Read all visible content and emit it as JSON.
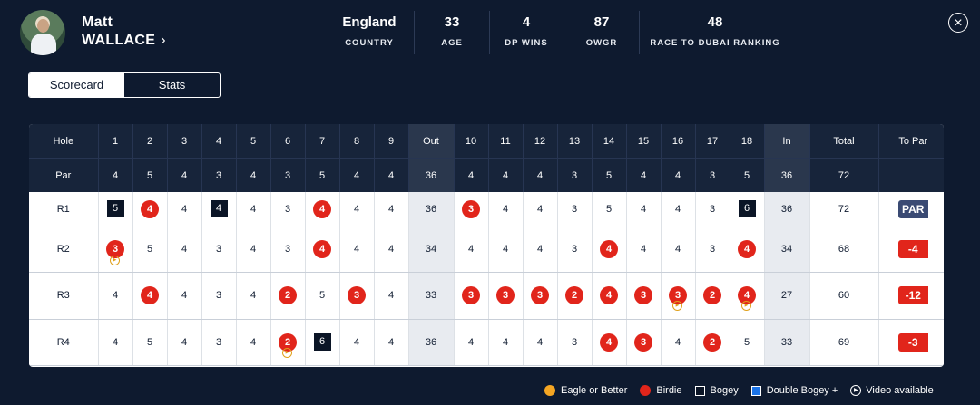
{
  "player": {
    "first_name": "Matt",
    "last_name": "WALLACE",
    "chevron": "›"
  },
  "stats": [
    {
      "value": "England",
      "label": "COUNTRY"
    },
    {
      "value": "33",
      "label": "AGE"
    },
    {
      "value": "4",
      "label": "DP WINS"
    },
    {
      "value": "87",
      "label": "OWGR"
    },
    {
      "value": "48",
      "label": "RACE TO DUBAI RANKING"
    }
  ],
  "close_icon": "×",
  "tabs": [
    {
      "label": "Scorecard",
      "active": true
    },
    {
      "label": "Stats",
      "active": false
    }
  ],
  "table": {
    "hole_label": "Hole",
    "par_label": "Par",
    "holes": [
      "1",
      "2",
      "3",
      "4",
      "5",
      "6",
      "7",
      "8",
      "9",
      "Out",
      "10",
      "11",
      "12",
      "13",
      "14",
      "15",
      "16",
      "17",
      "18",
      "In",
      "Total",
      "To Par"
    ],
    "par": [
      "4",
      "5",
      "4",
      "3",
      "4",
      "3",
      "5",
      "4",
      "4",
      "36",
      "4",
      "4",
      "4",
      "3",
      "5",
      "4",
      "4",
      "3",
      "5",
      "36",
      "72",
      ""
    ]
  },
  "rounds": [
    {
      "label": "R1",
      "scores": [
        "5",
        "4",
        "4",
        "4",
        "4",
        "3",
        "4",
        "4",
        "4",
        "36",
        "3",
        "4",
        "4",
        "3",
        "5",
        "4",
        "4",
        "3",
        "6",
        "36",
        "72"
      ],
      "types": [
        "bogey",
        "birdie",
        "",
        "bogey",
        "",
        "",
        "birdie",
        "",
        "",
        "",
        "birdie",
        "",
        "",
        "",
        "",
        "",
        "",
        "",
        "bogey",
        "",
        ""
      ],
      "videos": [],
      "to_par": "PAR",
      "to_par_type": "par"
    },
    {
      "label": "R2",
      "scores": [
        "3",
        "5",
        "4",
        "3",
        "4",
        "3",
        "4",
        "4",
        "4",
        "34",
        "4",
        "4",
        "4",
        "3",
        "4",
        "4",
        "4",
        "3",
        "4",
        "34",
        "68"
      ],
      "types": [
        "birdie",
        "",
        "",
        "",
        "",
        "",
        "birdie",
        "",
        "",
        "",
        "",
        "",
        "",
        "",
        "birdie",
        "",
        "",
        "",
        "birdie",
        "",
        ""
      ],
      "videos": [
        0
      ],
      "to_par": "-4",
      "to_par_type": "under"
    },
    {
      "label": "R3",
      "scores": [
        "4",
        "4",
        "4",
        "3",
        "4",
        "2",
        "5",
        "3",
        "4",
        "33",
        "3",
        "3",
        "3",
        "2",
        "4",
        "3",
        "3",
        "2",
        "4",
        "27",
        "60"
      ],
      "types": [
        "",
        "birdie",
        "",
        "",
        "",
        "birdie",
        "",
        "birdie",
        "",
        "",
        "birdie",
        "birdie",
        "birdie",
        "birdie",
        "birdie",
        "birdie",
        "birdie",
        "birdie",
        "birdie",
        "",
        ""
      ],
      "videos": [
        16,
        18
      ],
      "to_par": "-12",
      "to_par_type": "under"
    },
    {
      "label": "R4",
      "scores": [
        "4",
        "5",
        "4",
        "3",
        "4",
        "2",
        "6",
        "4",
        "4",
        "36",
        "4",
        "4",
        "4",
        "3",
        "4",
        "3",
        "4",
        "2",
        "5",
        "33",
        "69"
      ],
      "types": [
        "",
        "",
        "",
        "",
        "",
        "birdie",
        "bogey",
        "",
        "",
        "",
        "",
        "",
        "",
        "",
        "birdie",
        "birdie",
        "",
        "birdie",
        "",
        "",
        ""
      ],
      "videos": [
        5
      ],
      "to_par": "-3",
      "to_par_type": "under"
    }
  ],
  "legend": [
    {
      "label": "Eagle or Better",
      "kind": "dot",
      "color": "#f5a623"
    },
    {
      "label": "Birdie",
      "kind": "dot",
      "color": "#e1251b"
    },
    {
      "label": "Bogey",
      "kind": "box",
      "color": "#0b1526"
    },
    {
      "label": "Double Bogey +",
      "kind": "box",
      "color": "#1a73e8"
    },
    {
      "label": "Video available",
      "kind": "play",
      "color": "#ffffff"
    }
  ],
  "play_icon": "▶"
}
